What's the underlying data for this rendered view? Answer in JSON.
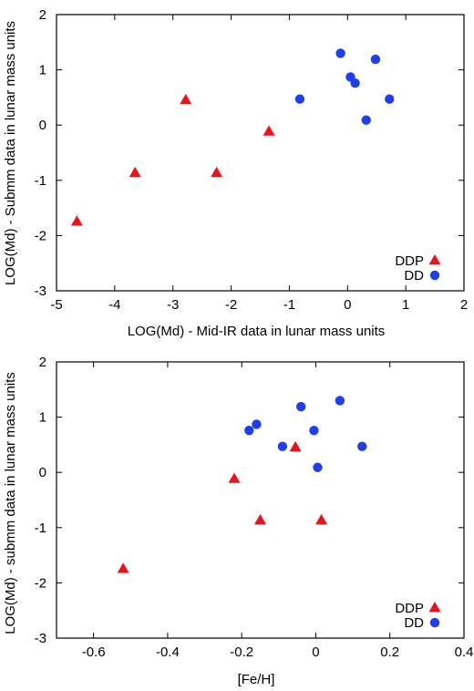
{
  "chart_data": [
    {
      "type": "scatter",
      "title": "",
      "xlabel": "LOG(Md) - Mid-IR data in lunar mass units",
      "ylabel": "LOG(Md) - Submm data in lunar mass units",
      "xlim": [
        -5,
        2
      ],
      "ylim": [
        -3,
        2
      ],
      "xticks": [
        -5,
        -4,
        -3,
        -2,
        -1,
        0,
        1,
        2
      ],
      "yticks": [
        -3,
        -2,
        -1,
        0,
        1,
        2
      ],
      "xtick_labels": [
        "-5",
        "-4",
        "-3",
        "-2",
        "-1",
        "0",
        "1",
        "2"
      ],
      "ytick_labels": [
        "-3",
        "-2",
        "-1",
        "0",
        "1",
        "2"
      ],
      "grid": false,
      "legend_position": "bottom-right",
      "series": [
        {
          "name": "DDP",
          "marker": "triangle",
          "color": "#e8141c",
          "points": [
            [
              -4.65,
              -1.75
            ],
            [
              -3.65,
              -0.87
            ],
            [
              -2.78,
              0.45
            ],
            [
              -2.25,
              -0.87
            ],
            [
              -1.35,
              -0.12
            ]
          ]
        },
        {
          "name": "DD",
          "marker": "circle",
          "color": "#1f3fe8",
          "points": [
            [
              -0.12,
              1.3
            ],
            [
              0.48,
              1.19
            ],
            [
              0.05,
              0.87
            ],
            [
              0.13,
              0.76
            ],
            [
              -0.82,
              0.47
            ],
            [
              0.72,
              0.47
            ],
            [
              0.32,
              0.09
            ]
          ]
        }
      ]
    },
    {
      "type": "scatter",
      "title": "",
      "xlabel": "[Fe/H]",
      "ylabel": "LOG(Md) - submm data in lunar mass units",
      "xlim": [
        -0.7,
        0.4
      ],
      "ylim": [
        -3,
        2
      ],
      "xticks": [
        -0.6,
        -0.4,
        -0.2,
        0,
        0.2,
        0.4
      ],
      "yticks": [
        -3,
        -2,
        -1,
        0,
        1,
        2
      ],
      "xtick_labels": [
        "-0.6",
        "-0.4",
        "-0.2",
        "0",
        "0.2",
        "0.4"
      ],
      "ytick_labels": [
        "-3",
        "-2",
        "-1",
        "0",
        "1",
        "2"
      ],
      "grid": false,
      "legend_position": "bottom-right",
      "series": [
        {
          "name": "DDP",
          "marker": "triangle",
          "color": "#e8141c",
          "points": [
            [
              -0.52,
              -1.75
            ],
            [
              -0.15,
              -0.87
            ],
            [
              0.015,
              -0.87
            ],
            [
              -0.22,
              -0.12
            ],
            [
              -0.055,
              0.45
            ]
          ]
        },
        {
          "name": "DD",
          "marker": "circle",
          "color": "#1f3fe8",
          "points": [
            [
              0.065,
              1.3
            ],
            [
              -0.04,
              1.19
            ],
            [
              -0.16,
              0.87
            ],
            [
              -0.18,
              0.76
            ],
            [
              -0.005,
              0.76
            ],
            [
              -0.09,
              0.47
            ],
            [
              0.125,
              0.47
            ],
            [
              0.005,
              0.09
            ]
          ]
        }
      ]
    }
  ]
}
